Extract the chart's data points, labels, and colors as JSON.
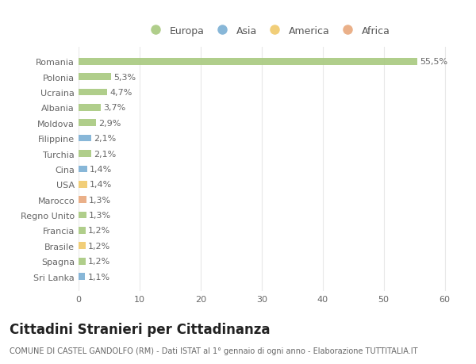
{
  "countries": [
    "Romania",
    "Polonia",
    "Ucraina",
    "Albania",
    "Moldova",
    "Filippine",
    "Turchia",
    "Cina",
    "USA",
    "Marocco",
    "Regno Unito",
    "Francia",
    "Brasile",
    "Spagna",
    "Sri Lanka"
  ],
  "values": [
    55.5,
    5.3,
    4.7,
    3.7,
    2.9,
    2.1,
    2.1,
    1.4,
    1.4,
    1.3,
    1.3,
    1.2,
    1.2,
    1.2,
    1.1
  ],
  "labels": [
    "55,5%",
    "5,3%",
    "4,7%",
    "3,7%",
    "2,9%",
    "2,1%",
    "2,1%",
    "1,4%",
    "1,4%",
    "1,3%",
    "1,3%",
    "1,2%",
    "1,2%",
    "1,2%",
    "1,1%"
  ],
  "continents": [
    "Europa",
    "Europa",
    "Europa",
    "Europa",
    "Europa",
    "Asia",
    "Europa",
    "Asia",
    "America",
    "Africa",
    "Europa",
    "Europa",
    "America",
    "Europa",
    "Asia"
  ],
  "continent_colors": {
    "Europa": "#a8c97f",
    "Asia": "#7bafd4",
    "America": "#f0c96a",
    "Africa": "#e8a87c"
  },
  "legend_order": [
    "Europa",
    "Asia",
    "America",
    "Africa"
  ],
  "bg_color": "#ffffff",
  "grid_color": "#e8e8e8",
  "title": "Cittadini Stranieri per Cittadinanza",
  "subtitle": "COMUNE DI CASTEL GANDOLFO (RM) - Dati ISTAT al 1° gennaio di ogni anno - Elaborazione TUTTITALIA.IT",
  "xlim": [
    0,
    62
  ],
  "xticks": [
    0,
    10,
    20,
    30,
    40,
    50,
    60
  ],
  "bar_height": 0.45,
  "label_fontsize": 8.0,
  "tick_fontsize": 8.0,
  "title_fontsize": 12,
  "subtitle_fontsize": 7.0
}
